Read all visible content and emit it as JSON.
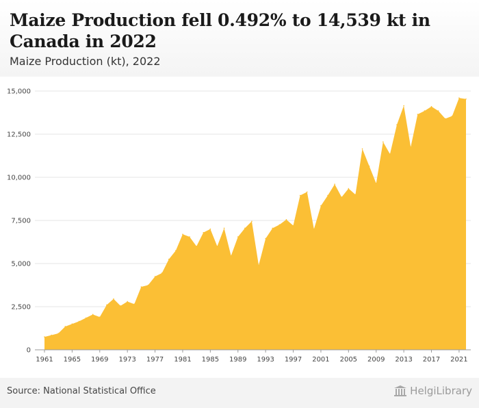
{
  "header": {
    "title": "Maize Production fell 0.492% to 14,539 kt in Canada in 2022",
    "subtitle": "Maize Production (kt), 2022"
  },
  "footer": {
    "source": "Source: National Statistical Office",
    "logo_text": "HelgiLibrary"
  },
  "colors": {
    "area_fill": "#fbbf35",
    "grid": "#e6e6e6",
    "axis": "#999999"
  },
  "chart_data": {
    "type": "area",
    "title": "Maize Production fell 0.492% to 14,539 kt in Canada in 2022",
    "subtitle": "Maize Production (kt), 2022",
    "xlabel": "",
    "ylabel": "",
    "ylim": [
      0,
      15000
    ],
    "yticks": [
      0,
      2500,
      5000,
      7500,
      10000,
      12500,
      15000
    ],
    "ytick_labels": [
      "0",
      "2,500",
      "5,000",
      "7,500",
      "10,000",
      "12,500",
      "15,000"
    ],
    "xlim": [
      1961,
      2022
    ],
    "xticks": [
      1961,
      1965,
      1969,
      1973,
      1977,
      1981,
      1985,
      1989,
      1993,
      1997,
      2001,
      2005,
      2009,
      2013,
      2017,
      2021
    ],
    "grid": true,
    "legend": "none",
    "series": [
      {
        "x": [
          1961,
          1962,
          1963,
          1964,
          1965,
          1966,
          1967,
          1968,
          1969,
          1970,
          1971,
          1972,
          1973,
          1974,
          1975,
          1976,
          1977,
          1978,
          1979,
          1980,
          1981,
          1982,
          1983,
          1984,
          1985,
          1986,
          1987,
          1988,
          1989,
          1990,
          1991,
          1992,
          1993,
          1994,
          1995,
          1996,
          1997,
          1998,
          1999,
          2000,
          2001,
          2002,
          2003,
          2004,
          2005,
          2006,
          2007,
          2008,
          2009,
          2010,
          2011,
          2012,
          2013,
          2014,
          2015,
          2016,
          2017,
          2018,
          2019,
          2020,
          2021,
          2022
        ],
        "values": [
          750,
          850,
          950,
          1350,
          1500,
          1650,
          1850,
          2050,
          1900,
          2600,
          2950,
          2550,
          2800,
          2650,
          3650,
          3750,
          4250,
          4450,
          5250,
          5750,
          6700,
          6550,
          6000,
          6800,
          7000,
          6000,
          7050,
          5450,
          6550,
          7050,
          7450,
          4900,
          6450,
          7050,
          7250,
          7550,
          7200,
          8950,
          9150,
          7000,
          8350,
          8950,
          9600,
          8850,
          9350,
          9000,
          11650,
          10650,
          9650,
          12050,
          11350,
          13050,
          14150,
          11750,
          13650,
          13850,
          14100,
          13850,
          13400,
          13550,
          14600,
          14539
        ]
      }
    ]
  }
}
